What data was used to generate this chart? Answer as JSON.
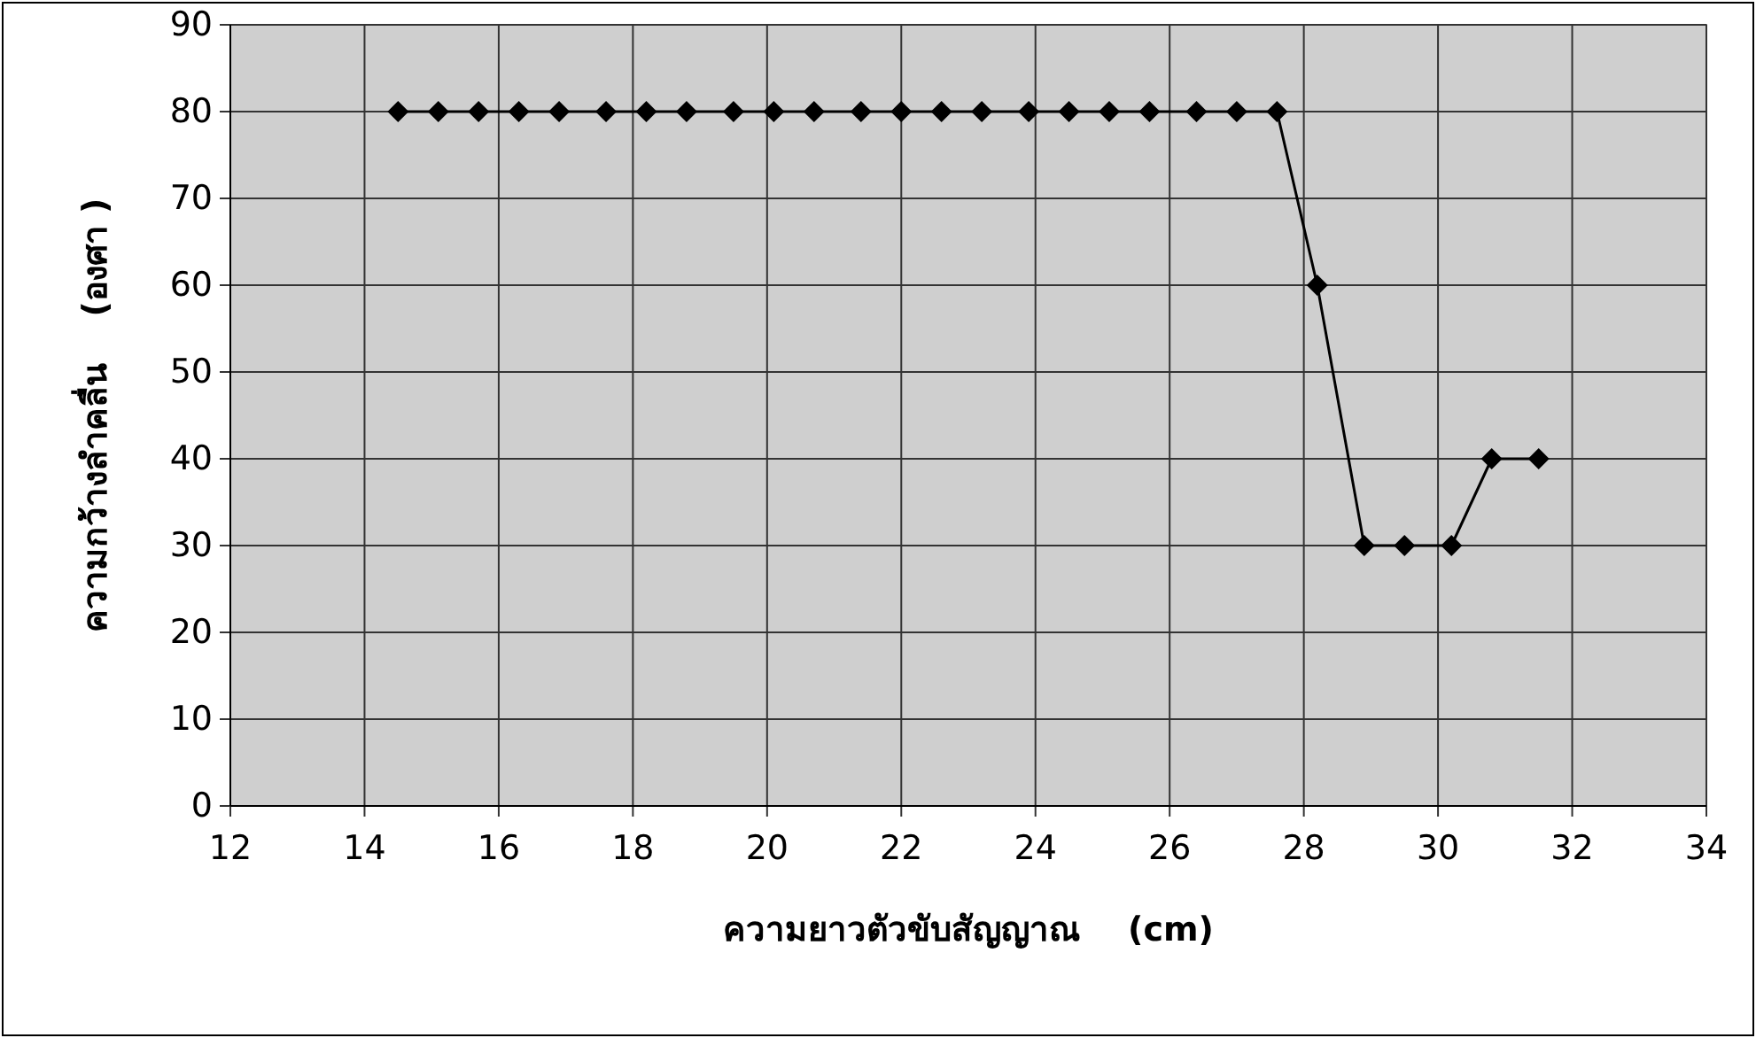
{
  "chart_data": {
    "type": "line",
    "xlabel": "ความยาวตัวขับสัญญาณ    (cm)",
    "ylabel": "ความกว้างลำคลื่น    (องศา )",
    "series": [
      {
        "color": "#000000",
        "x": [
          14.5,
          15.1,
          15.7,
          16.3,
          16.9,
          17.6,
          18.2,
          18.8,
          19.5,
          20.1,
          20.7,
          21.4,
          22.0,
          22.6,
          23.2,
          23.9,
          24.5,
          25.1,
          25.7,
          26.4,
          27.0,
          27.6,
          28.2,
          28.9,
          29.5,
          30.2,
          30.8,
          31.5
        ],
        "values": [
          80,
          80,
          80,
          80,
          80,
          80,
          80,
          80,
          80,
          80,
          80,
          80,
          80,
          80,
          80,
          80,
          80,
          80,
          80,
          80,
          80,
          80,
          60,
          30,
          30,
          30,
          40,
          40
        ]
      }
    ],
    "xlim": [
      12,
      34
    ],
    "xticks": [
      12,
      14,
      16,
      18,
      20,
      22,
      24,
      26,
      28,
      30,
      32,
      34
    ],
    "ylim": [
      0,
      90
    ],
    "yticks": [
      0,
      10,
      20,
      30,
      40,
      50,
      60,
      70,
      80,
      90
    ],
    "grid": true,
    "marker": "diamond",
    "line_style": "solid"
  }
}
